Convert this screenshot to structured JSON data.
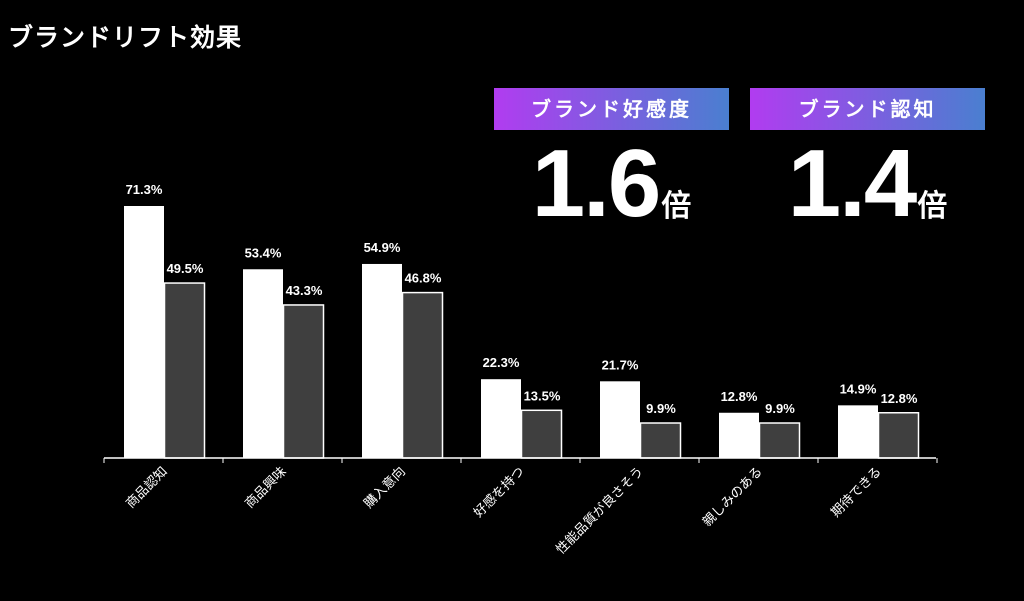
{
  "page": {
    "title": "ブランドリフト効果"
  },
  "kpis": [
    {
      "label": "ブランド好感度",
      "value": "1.6",
      "unit": "倍"
    },
    {
      "label": "ブランド認知",
      "value": "1.4",
      "unit": "倍"
    }
  ],
  "colors": {
    "background": "#000000",
    "bar_primary": "#ffffff",
    "bar_secondary": "#3f3f3f",
    "bar_outline": "#ffffff",
    "badge_gradient_start": "#b13cf0",
    "badge_gradient_end": "#4a7fd0"
  },
  "chart_data": {
    "type": "bar",
    "categories": [
      "商品認知",
      "商品興味",
      "購入意向",
      "好感を持つ",
      "性能品質が良さそう",
      "親しみのある",
      "期待できる"
    ],
    "series": [
      {
        "values": [
          71.3,
          53.4,
          54.9,
          22.3,
          21.7,
          12.8,
          14.9
        ],
        "labels": [
          "71.3%",
          "53.4%",
          "54.9%",
          "22.3%",
          "21.7%",
          "12.8%",
          "14.9%"
        ],
        "color": "#ffffff"
      },
      {
        "values": [
          49.5,
          43.3,
          46.8,
          13.5,
          9.9,
          9.9,
          12.8
        ],
        "labels": [
          "49.5%",
          "43.3%",
          "46.8%",
          "13.5%",
          "9.9%",
          "9.9%",
          "12.8%"
        ],
        "color": "#3f3f3f"
      }
    ],
    "ylim": [
      0,
      100
    ],
    "grid": false,
    "legend": "none"
  }
}
